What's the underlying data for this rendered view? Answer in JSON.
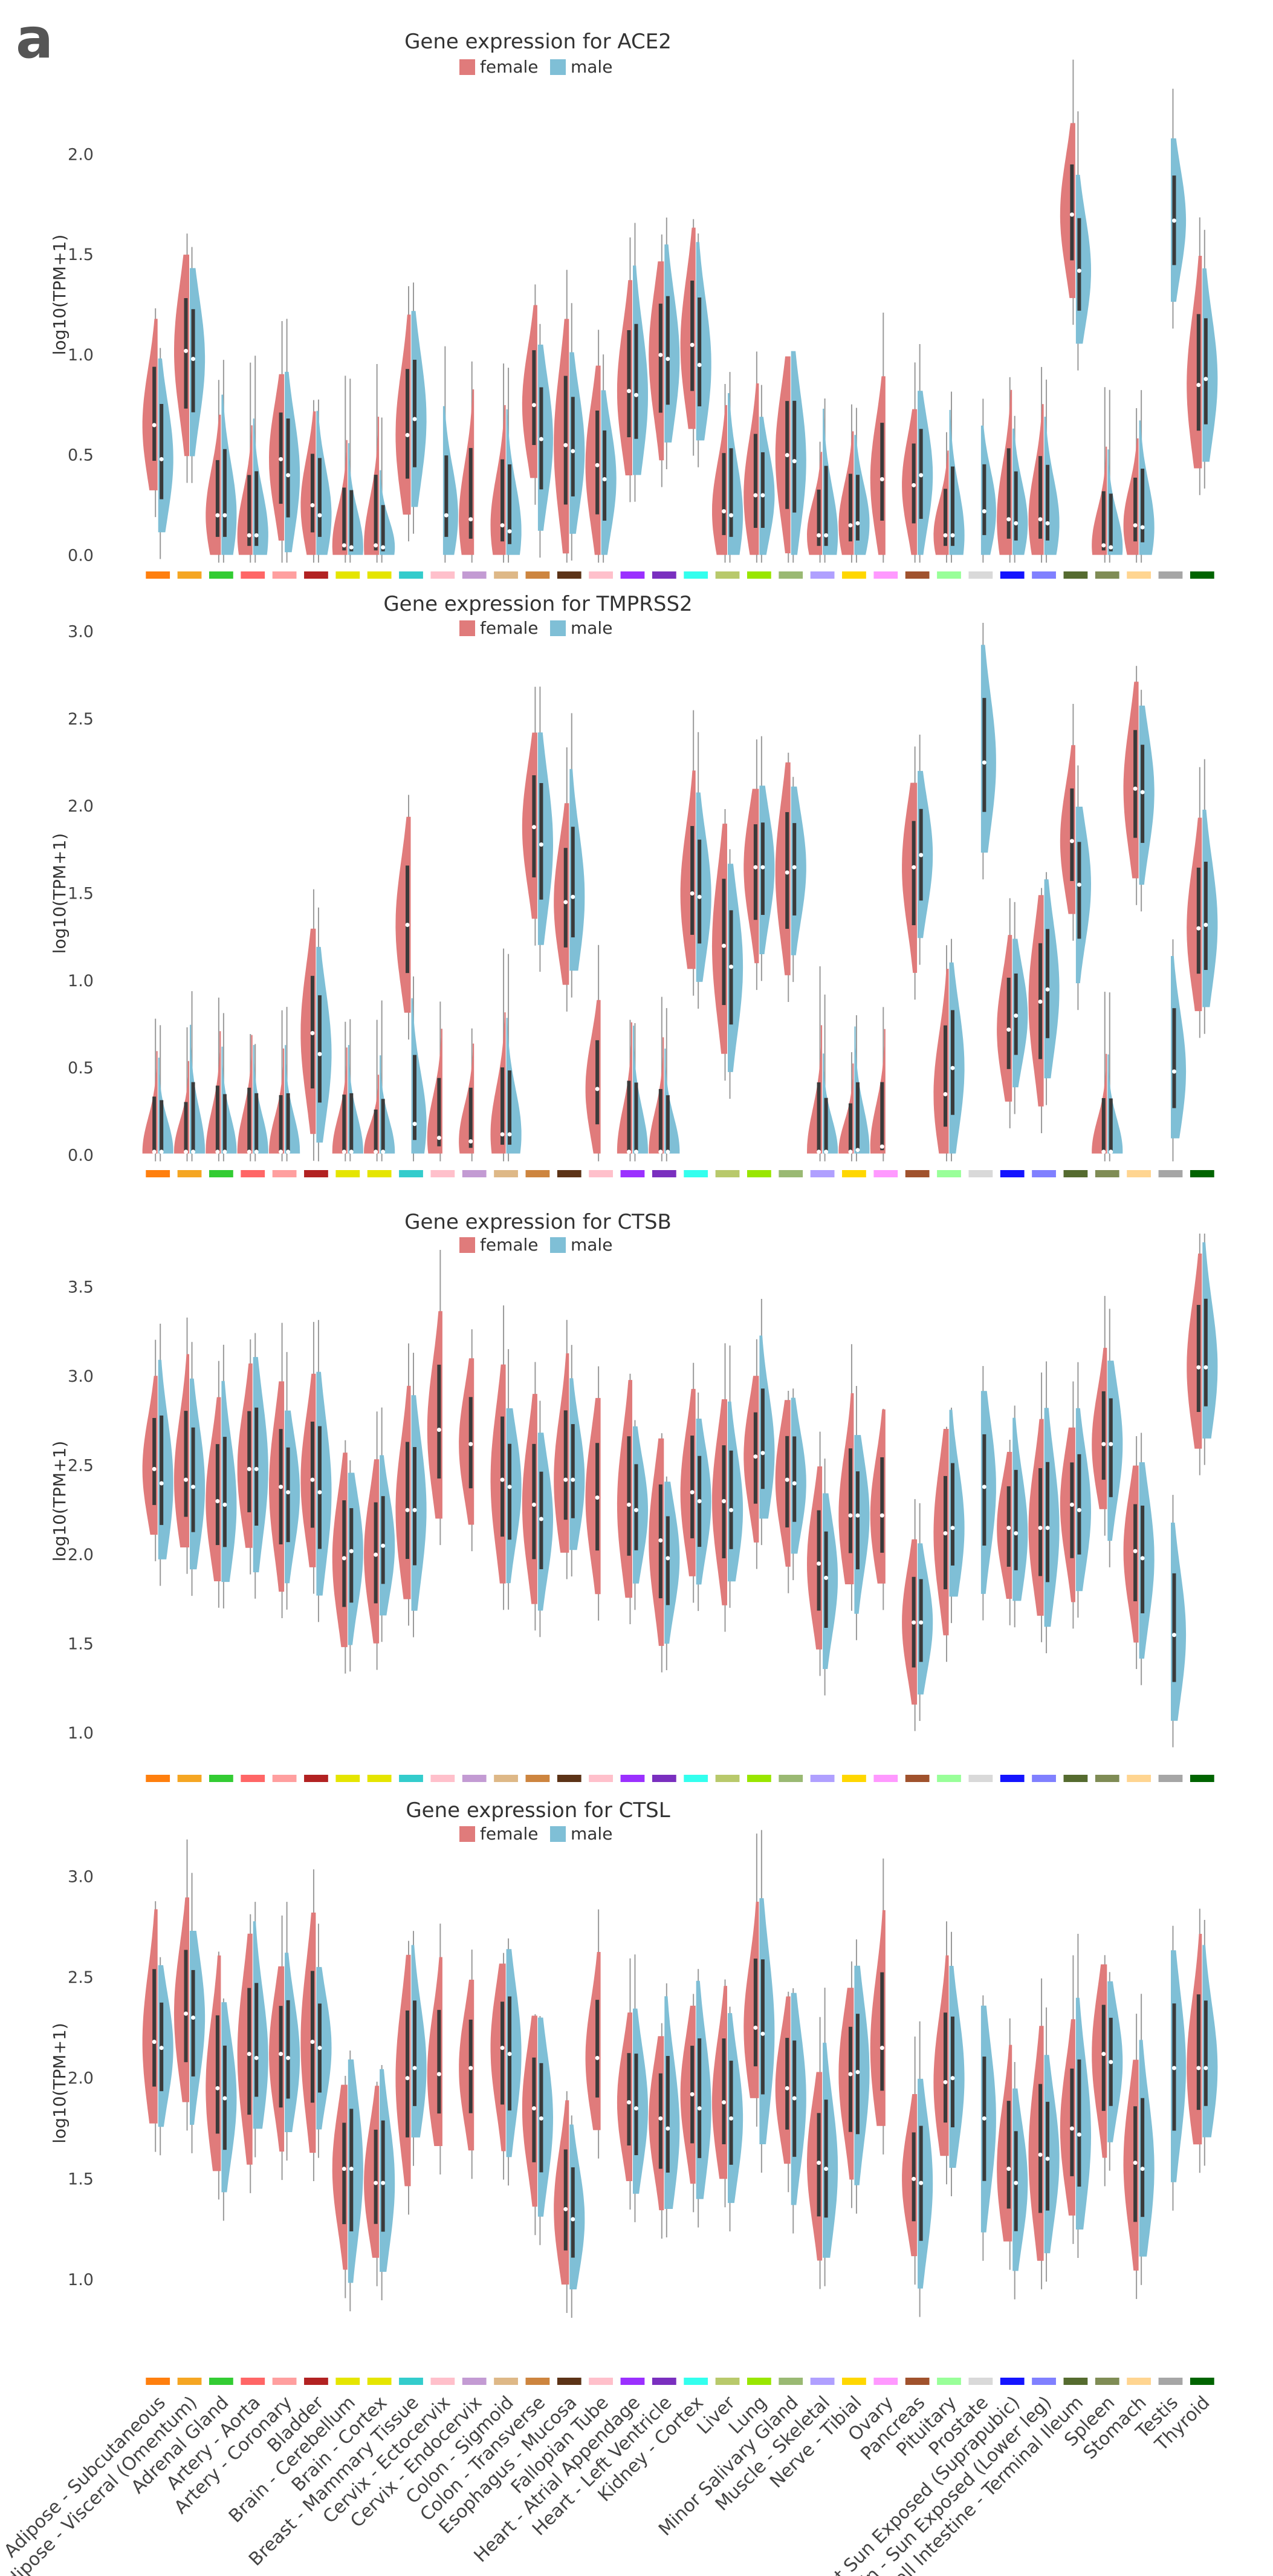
{
  "panel_label": "a",
  "colors": {
    "female": "#e07b7b",
    "male": "#7fbfd6",
    "tissue_colors": [
      "#ff7f0e",
      "#f5a623",
      "#33cc33",
      "#ff6666",
      "#ff9f9f",
      "#b22222",
      "#e5e500",
      "#e5e500",
      "#33cccc",
      "#ffc0cb",
      "#c39bd3",
      "#deb887",
      "#cd853f",
      "#5c3317",
      "#ffc0cb",
      "#9b30ff",
      "#7a2fbf",
      "#33ffee",
      "#b8c96b",
      "#99e600",
      "#9ab973",
      "#b0a0ff",
      "#ffd700",
      "#ff99ff",
      "#a0522d",
      "#99ff99",
      "#d9d9d9",
      "#1414ff",
      "#8080ff",
      "#556b2f",
      "#7f8c55",
      "#ffd591",
      "#a6a6a6",
      "#006400"
    ]
  },
  "legend": {
    "female": "female",
    "male": "male"
  },
  "tissues": [
    "Adipose - Subcutaneous",
    "Adipose - Visceral (Omentum)",
    "Adrenal Gland",
    "Artery - Aorta",
    "Artery - Coronary",
    "Bladder",
    "Brain - Cerebellum",
    "Brain - Cortex",
    "Breast - Mammary Tissue",
    "Cervix - Ectocervix",
    "Cervix - Endocervix",
    "Colon - Sigmoid",
    "Colon - Transverse",
    "Esophagus - Mucosa",
    "Fallopian Tube",
    "Heart - Atrial Appendage",
    "Heart - Left Ventricle",
    "Kidney - Cortex",
    "Liver",
    "Lung",
    "Minor Salivary Gland",
    "Muscle - Skeletal",
    "Nerve - Tibial",
    "Ovary",
    "Pancreas",
    "Pituitary",
    "Prostate",
    "Skin - Not Sun Exposed (Suprapubic)",
    "Skin - Sun Exposed (Lower leg)",
    "Small Intestine - Terminal Ileum",
    "Spleen",
    "Stomach",
    "Testis",
    "Thyroid"
  ],
  "chart_data": [
    {
      "type": "violin",
      "title": "Gene expression for ACE2",
      "ylabel": "log10(TPM+1)",
      "ylim": [
        -0.05,
        2.65
      ],
      "yticks": [
        "0.0",
        "0.5",
        "1.0",
        "1.5",
        "2.0"
      ],
      "series": [
        {
          "name": "female",
          "medians": [
            0.65,
            1.02,
            0.2,
            0.1,
            0.48,
            0.25,
            0.05,
            0.05,
            0.6,
            null,
            0.18,
            0.15,
            0.75,
            0.55,
            0.45,
            0.82,
            1.0,
            1.05,
            0.22,
            0.3,
            0.5,
            0.1,
            0.15,
            0.38,
            0.35,
            0.1,
            null,
            0.18,
            0.18,
            1.7,
            0.05,
            0.15,
            null,
            0.85
          ]
        },
        {
          "name": "male",
          "medians": [
            0.48,
            0.98,
            0.2,
            0.1,
            0.4,
            0.2,
            0.04,
            0.04,
            0.68,
            0.2,
            null,
            0.12,
            0.58,
            0.52,
            0.38,
            0.8,
            0.98,
            0.95,
            0.2,
            0.3,
            0.47,
            0.1,
            0.16,
            null,
            0.4,
            0.1,
            0.22,
            0.16,
            0.16,
            1.42,
            0.04,
            0.14,
            1.67,
            0.88
          ]
        }
      ]
    },
    {
      "type": "violin",
      "title": "Gene expression for TMPRSS2",
      "ylabel": "log10(TPM+1)",
      "ylim": [
        -0.05,
        3.05
      ],
      "yticks": [
        "0.0",
        "0.5",
        "1.0",
        "1.5",
        "2.0",
        "2.5",
        "3.0"
      ],
      "series": [
        {
          "name": "female",
          "medians": [
            0.02,
            0.02,
            0.02,
            0.02,
            0.02,
            0.7,
            0.02,
            0.02,
            1.32,
            0.1,
            0.08,
            0.12,
            1.88,
            1.45,
            0.38,
            0.02,
            0.02,
            1.5,
            1.2,
            1.65,
            1.62,
            0.02,
            0.02,
            0.05,
            1.65,
            0.35,
            null,
            0.72,
            0.88,
            1.8,
            0.02,
            2.1,
            null,
            1.3
          ]
        },
        {
          "name": "male",
          "medians": [
            0.02,
            0.02,
            0.02,
            0.02,
            0.02,
            0.58,
            0.02,
            0.02,
            0.18,
            null,
            null,
            0.12,
            1.78,
            1.48,
            null,
            0.02,
            0.02,
            1.48,
            1.08,
            1.65,
            1.65,
            0.02,
            0.03,
            null,
            1.72,
            0.5,
            2.25,
            0.8,
            0.95,
            1.55,
            0.02,
            2.08,
            0.48,
            1.32
          ]
        }
      ]
    },
    {
      "type": "violin",
      "title": "Gene expression for CTSB",
      "ylabel": "log10(TPM+1)",
      "ylim": [
        0.8,
        3.8
      ],
      "yticks": [
        "1.0",
        "1.5",
        "2.0",
        "2.5",
        "3.0",
        "3.5"
      ],
      "series": [
        {
          "name": "female",
          "medians": [
            2.48,
            2.42,
            2.3,
            2.48,
            2.38,
            2.42,
            1.98,
            2.0,
            2.25,
            2.7,
            2.62,
            2.42,
            2.28,
            2.42,
            2.32,
            2.28,
            2.08,
            2.35,
            2.3,
            2.55,
            2.42,
            1.95,
            2.22,
            2.22,
            1.62,
            2.12,
            null,
            2.15,
            2.15,
            2.28,
            2.62,
            2.02,
            null,
            3.05
          ]
        },
        {
          "name": "male",
          "medians": [
            2.4,
            2.38,
            2.28,
            2.48,
            2.35,
            2.35,
            2.02,
            2.05,
            2.25,
            null,
            null,
            2.38,
            2.2,
            2.42,
            null,
            2.25,
            1.98,
            2.3,
            2.25,
            2.57,
            2.4,
            1.87,
            2.22,
            null,
            1.62,
            2.15,
            2.38,
            2.12,
            2.15,
            2.25,
            2.62,
            1.98,
            1.55,
            3.05
          ]
        }
      ]
    },
    {
      "type": "violin",
      "title": "Gene expression for CTSL",
      "ylabel": "log10(TPM+1)",
      "ylim": [
        0.55,
        3.4
      ],
      "yticks": [
        "1.0",
        "1.5",
        "2.0",
        "2.5",
        "3.0"
      ],
      "series": [
        {
          "name": "female",
          "medians": [
            2.18,
            2.32,
            1.95,
            2.12,
            2.12,
            2.18,
            1.55,
            1.48,
            2.0,
            2.02,
            2.05,
            2.15,
            1.85,
            1.35,
            2.1,
            1.88,
            1.8,
            1.92,
            1.88,
            2.25,
            1.95,
            1.58,
            2.02,
            2.15,
            1.5,
            1.98,
            null,
            1.55,
            1.62,
            1.75,
            2.12,
            1.58,
            null,
            2.05
          ]
        },
        {
          "name": "male",
          "medians": [
            2.15,
            2.3,
            1.9,
            2.1,
            2.1,
            2.15,
            1.55,
            1.48,
            2.05,
            null,
            null,
            2.12,
            1.8,
            1.3,
            null,
            1.85,
            1.75,
            1.85,
            1.8,
            2.22,
            1.9,
            1.55,
            2.03,
            null,
            1.48,
            2.0,
            1.8,
            1.48,
            1.6,
            1.72,
            2.08,
            1.55,
            2.05,
            2.05
          ]
        }
      ]
    }
  ]
}
